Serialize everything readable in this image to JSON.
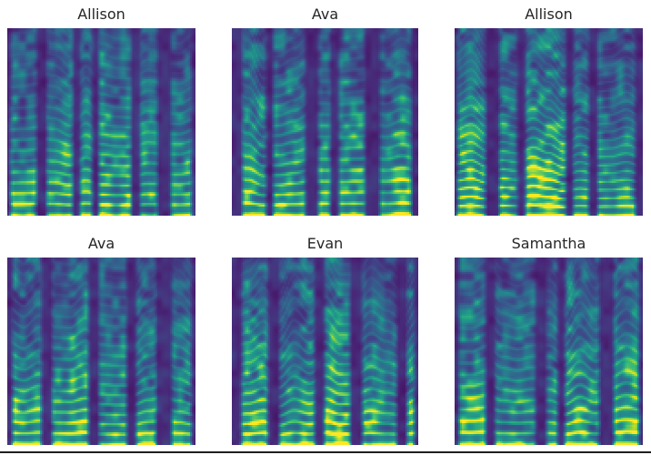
{
  "figure": {
    "background": "#ffffff",
    "title_color": "#262626",
    "window_border_color": "#1f1f1f"
  },
  "chart_data": {
    "type": "heatmap",
    "subtype": "audio spectrograms",
    "colormap": "viridis",
    "grid": {
      "rows": 2,
      "cols": 3
    },
    "axes": {
      "ticks": false,
      "axis_labels": false,
      "frame": false
    },
    "legend": "none",
    "colormap_stops": [
      "#440154",
      "#482878",
      "#3e4a89",
      "#31688e",
      "#26828e",
      "#1f9e89",
      "#35b779",
      "#6dcd59",
      "#b4de2c",
      "#fde725"
    ],
    "subplots": [
      {
        "title": "Allison",
        "row": 0,
        "col": 0,
        "seed": 7
      },
      {
        "title": "Ava",
        "row": 0,
        "col": 1,
        "seed": 13
      },
      {
        "title": "Allison",
        "row": 0,
        "col": 2,
        "seed": 29
      },
      {
        "title": "Ava",
        "row": 1,
        "col": 0,
        "seed": 41
      },
      {
        "title": "Evan",
        "row": 1,
        "col": 1,
        "seed": 57
      },
      {
        "title": "Samantha",
        "row": 1,
        "col": 2,
        "seed": 73
      }
    ]
  }
}
